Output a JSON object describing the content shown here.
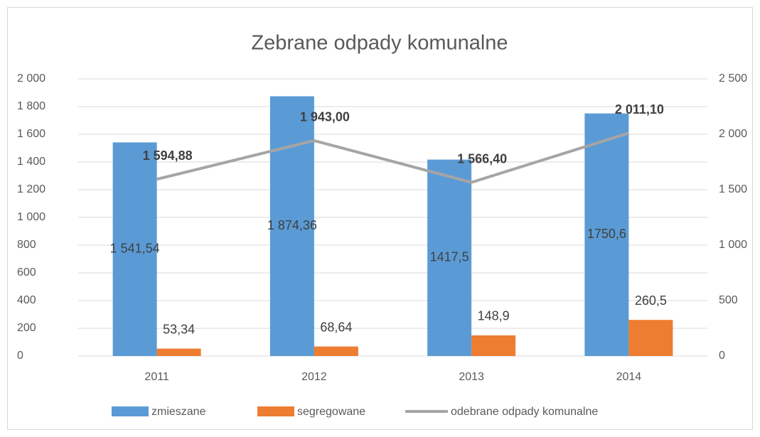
{
  "chart_data": {
    "type": "bar-line",
    "title": "Zebrane odpady komunalne",
    "categories": [
      "2011",
      "2012",
      "2013",
      "2014"
    ],
    "series": [
      {
        "name": "zmieszane",
        "type": "bar",
        "color": "#5b9bd5",
        "values": [
          1541.54,
          1874.36,
          1417.5,
          1750.6
        ],
        "value_labels": [
          "1 541,54",
          "1 874,36",
          "1417,5",
          "1750,6"
        ]
      },
      {
        "name": "segregowane",
        "type": "bar",
        "color": "#ed7d31",
        "values": [
          53.34,
          68.64,
          148.9,
          260.5
        ],
        "value_labels": [
          "53,34",
          "68,64",
          "148,9",
          "260,5"
        ]
      },
      {
        "name": "odebrane odpady komunalne",
        "type": "line",
        "axis": "y2",
        "color": "#a5a5a5",
        "values": [
          1594.88,
          1943.0,
          1566.4,
          2011.1
        ],
        "value_labels": [
          "1 594,88",
          "1 943,00",
          "1 566,40",
          "2 011,10"
        ]
      }
    ],
    "ylim": [
      0,
      2000
    ],
    "yticks": [
      0,
      200,
      400,
      600,
      800,
      {
        "value": 1000,
        "label": "1 000"
      },
      {
        "value": 1200,
        "label": "1 200"
      },
      {
        "value": 1400,
        "label": "1 400"
      },
      {
        "value": 1600,
        "label": "1 600"
      },
      {
        "value": 1800,
        "label": "1 800"
      },
      {
        "value": 2000,
        "label": "2 000"
      }
    ],
    "y2lim": [
      0,
      2500
    ],
    "y2ticks": [
      0,
      500,
      {
        "value": 1000,
        "label": "1 000"
      },
      {
        "value": 1500,
        "label": "1 500"
      },
      {
        "value": 2000,
        "label": "2 000"
      },
      {
        "value": 2500,
        "label": "2 500"
      }
    ],
    "grid": true,
    "legend": "bottom"
  }
}
